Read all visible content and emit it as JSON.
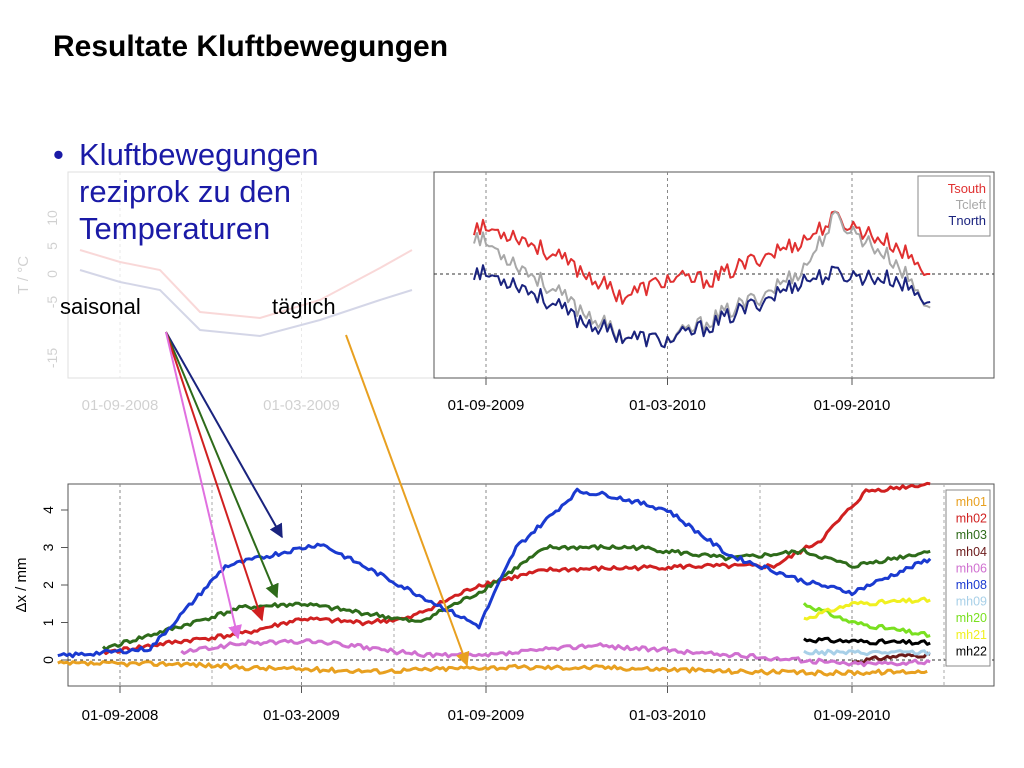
{
  "slide": {
    "title": "Resultate Kluftbewegungen",
    "bullet": [
      "Kluftbewegungen",
      "reziprok zu den",
      "Temperaturen"
    ],
    "annotations": {
      "seasonal": "saisonal",
      "daily": "täglich"
    }
  },
  "chart_data": [
    {
      "type": "line",
      "title": "",
      "xlabel": "",
      "ylabel": "T / °C",
      "x_ticks": [
        "01-09-2008",
        "01-03-2009",
        "01-09-2009",
        "01-03-2010",
        "01-09-2010"
      ],
      "y_ticks": [
        "-15",
        "-5",
        "0",
        "5",
        "10"
      ],
      "grid": true,
      "legend_position": "top-right",
      "series": [
        {
          "name": "Tsouth",
          "color": "#e03030",
          "x": [
            "2009-08-20",
            "2009-10-01",
            "2009-12-01",
            "2010-01-15",
            "2010-03-01",
            "2010-04-15",
            "2010-06-01",
            "2010-07-15",
            "2010-08-15",
            "2010-10-15",
            "2010-11-18"
          ],
          "y": [
            8.5,
            7,
            1,
            -4,
            -1,
            -1,
            3,
            6,
            10,
            5,
            0
          ]
        },
        {
          "name": "Tcleft",
          "color": "#a8a8a8",
          "x": [
            "2009-08-20",
            "2009-10-01",
            "2009-12-01",
            "2010-01-15",
            "2010-03-01",
            "2010-04-15",
            "2010-06-01",
            "2010-07-15",
            "2010-08-15",
            "2010-10-15",
            "2010-11-18"
          ],
          "y": [
            7,
            2,
            -6,
            -11,
            -12,
            -8,
            -4,
            1,
            10,
            2,
            -6
          ]
        },
        {
          "name": "Tnorth",
          "color": "#1a237e",
          "x": [
            "2009-08-20",
            "2009-10-01",
            "2009-12-01",
            "2010-01-15",
            "2010-03-01",
            "2010-04-15",
            "2010-06-01",
            "2010-07-15",
            "2010-08-15",
            "2010-10-15",
            "2010-11-18"
          ],
          "y": [
            0.5,
            -1.5,
            -8,
            -11,
            -12,
            -9,
            -5,
            -1,
            0,
            -1,
            -5
          ]
        }
      ]
    },
    {
      "type": "line",
      "title": "",
      "xlabel": "",
      "ylabel": "Δx / mm",
      "x_ticks": [
        "01-09-2008",
        "01-03-2009",
        "01-09-2009",
        "01-03-2010",
        "01-09-2010"
      ],
      "y_ticks": [
        "0",
        "1",
        "2",
        "3",
        "4"
      ],
      "ylim": [
        -0.6,
        4.8
      ],
      "grid": true,
      "legend_position": "top-right",
      "series": [
        {
          "name": "mh01",
          "color": "#e8a020",
          "x": [
            "2008-07-01",
            "2008-11-01",
            "2009-01-01",
            "2009-05-15",
            "2009-08-25",
            "2010-01-01",
            "2010-05-01",
            "2010-08-01",
            "2010-11-15"
          ],
          "y": [
            -0.1,
            -0.1,
            -0.2,
            -0.3,
            -0.2,
            -0.2,
            -0.3,
            -0.35,
            -0.3
          ]
        },
        {
          "name": "mh02",
          "color": "#d02020",
          "x": [
            "2008-08-15",
            "2008-11-01",
            "2009-01-01",
            "2009-03-01",
            "2009-05-01",
            "2009-06-15",
            "2009-08-25",
            "2009-11-01",
            "2010-04-01",
            "2010-06-15",
            "2010-08-01",
            "2010-09-15",
            "2010-11-18"
          ],
          "y": [
            0.2,
            0.5,
            0.7,
            1.1,
            1.0,
            1.1,
            2.0,
            2.4,
            2.5,
            2.5,
            3.2,
            4.5,
            4.7
          ]
        },
        {
          "name": "mh03",
          "color": "#2e6b1a",
          "x": [
            "2008-08-15",
            "2008-11-01",
            "2009-01-01",
            "2009-03-01",
            "2009-05-15",
            "2009-06-25",
            "2009-08-25",
            "2009-11-01",
            "2010-02-01",
            "2010-05-01",
            "2010-07-15",
            "2010-09-01",
            "2010-11-18"
          ],
          "y": [
            0.3,
            0.9,
            1.4,
            1.5,
            1.2,
            1.0,
            1.8,
            3.0,
            3.0,
            2.7,
            2.9,
            2.5,
            2.9
          ]
        },
        {
          "name": "mh04",
          "color": "#6b1a1a",
          "x": [
            "2010-09-01",
            "2010-10-15",
            "2010-11-18"
          ],
          "y": [
            -0.05,
            0.1,
            0.15
          ]
        },
        {
          "name": "mh06",
          "color": "#d070d0",
          "x": [
            "2008-11-01",
            "2009-01-01",
            "2009-03-15",
            "2009-06-25",
            "2009-08-25",
            "2009-12-15",
            "2010-09-01",
            "2010-11-18"
          ],
          "y": [
            0.2,
            0.45,
            0.5,
            0.15,
            0.1,
            0.4,
            -0.1,
            -0.05
          ]
        },
        {
          "name": "mh08",
          "color": "#1a3ad0",
          "x": [
            "2008-07-01",
            "2008-10-01",
            "2008-12-15",
            "2009-02-15",
            "2009-03-20",
            "2009-04-25",
            "2009-08-25",
            "2009-10-01",
            "2009-12-01",
            "2010-01-01",
            "2010-03-01",
            "2010-05-01",
            "2010-07-15",
            "2010-09-01",
            "2010-11-18"
          ],
          "y": [
            0.1,
            0.3,
            2.5,
            2.9,
            3.1,
            2.6,
            0.9,
            3.0,
            4.5,
            4.4,
            4.0,
            2.8,
            2.1,
            1.8,
            2.7
          ]
        },
        {
          "name": "mh09",
          "color": "#a8d0e8",
          "x": [
            "2010-07-15",
            "2010-11-18"
          ],
          "y": [
            0.2,
            0.2
          ]
        },
        {
          "name": "mh20",
          "color": "#7ae020",
          "x": [
            "2010-07-15",
            "2010-09-01",
            "2010-11-18"
          ],
          "y": [
            1.5,
            1.0,
            0.65
          ]
        },
        {
          "name": "mh21",
          "color": "#f0f020",
          "x": [
            "2010-07-15",
            "2010-09-01",
            "2010-11-18"
          ],
          "y": [
            1.1,
            1.5,
            1.6
          ]
        },
        {
          "name": "mh22",
          "color": "#000000",
          "x": [
            "2010-07-15",
            "2010-09-01",
            "2010-11-18"
          ],
          "y": [
            0.55,
            0.5,
            0.45
          ]
        }
      ]
    }
  ]
}
